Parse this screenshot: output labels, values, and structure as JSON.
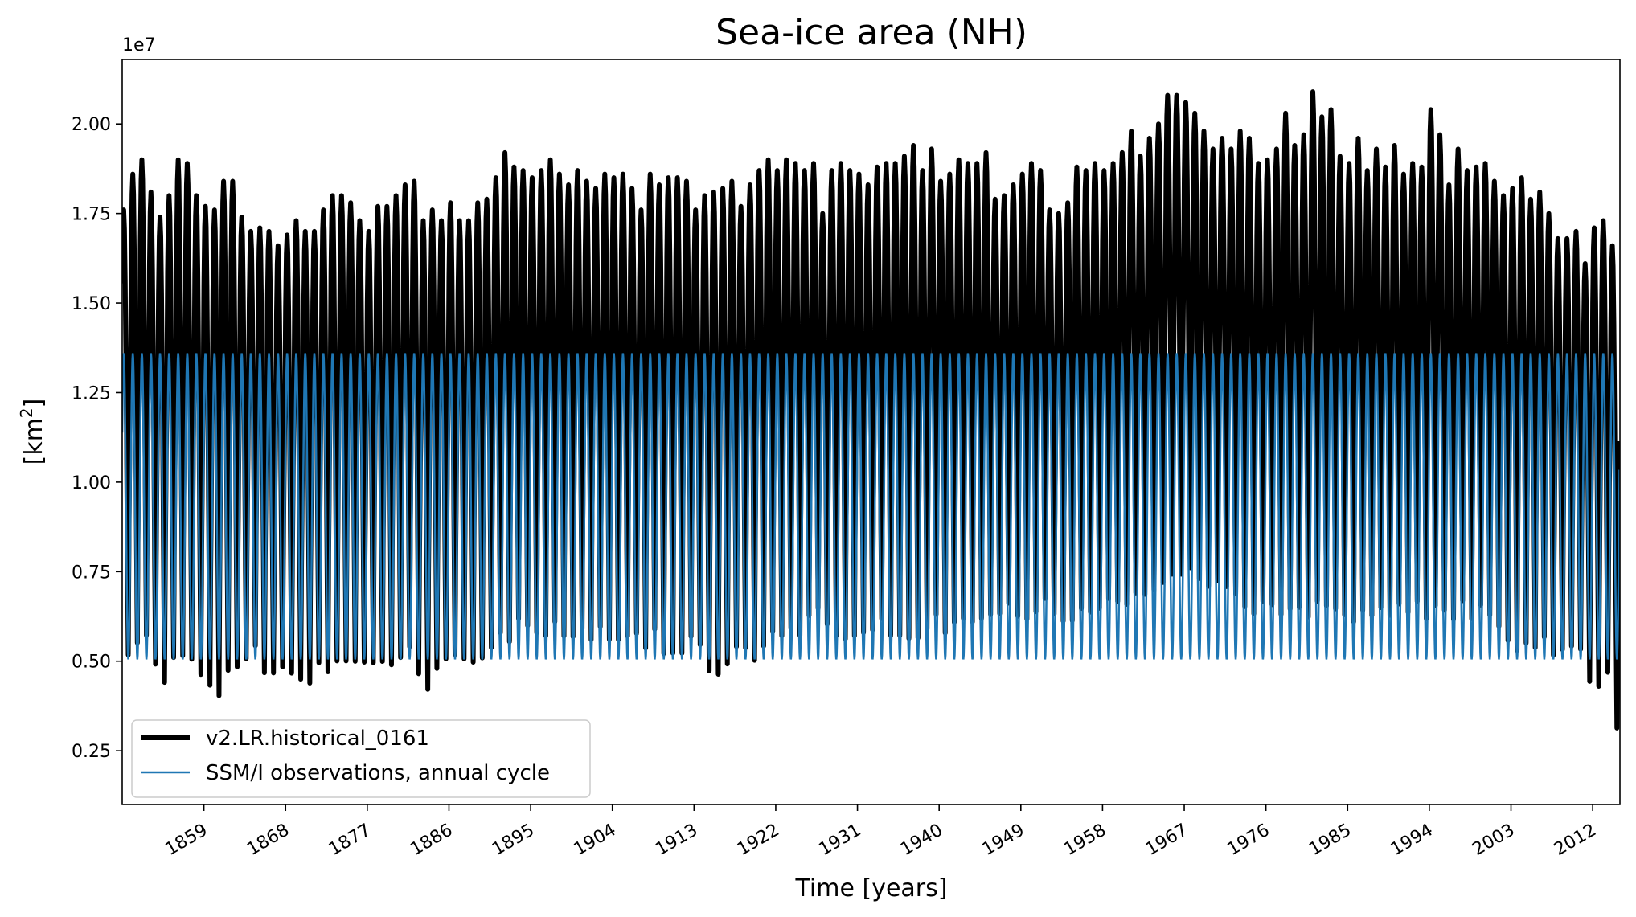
{
  "chart_data": {
    "type": "line",
    "title": "Sea-ice area (NH)",
    "xlabel": "Time [years]",
    "ylabel_main": "[km",
    "ylabel_sup": "2",
    "ylabel_close": "]",
    "y_offset_label": "1e7",
    "xlim": [
      1850,
      2015
    ],
    "ylim": [
      0.1,
      2.18
    ],
    "x_ticks": [
      1859,
      1868,
      1877,
      1886,
      1895,
      1904,
      1913,
      1922,
      1931,
      1940,
      1949,
      1958,
      1967,
      1976,
      1985,
      1994,
      2003,
      2012
    ],
    "x_tick_labels": [
      "1859",
      "1868",
      "1877",
      "1886",
      "1895",
      "1904",
      "1913",
      "1922",
      "1931",
      "1940",
      "1949",
      "1958",
      "1967",
      "1976",
      "1985",
      "1994",
      "2003",
      "2012"
    ],
    "y_ticks": [
      0.25,
      0.5,
      0.75,
      1.0,
      1.25,
      1.5,
      1.75,
      2.0
    ],
    "y_tick_labels": [
      "0.25",
      "0.50",
      "0.75",
      "1.00",
      "1.25",
      "1.50",
      "1.75",
      "2.00"
    ],
    "legend_position": "lower-left",
    "series": [
      {
        "name": "v2.LR.historical_0161",
        "color": "#000000",
        "style": "thick",
        "years": [
          1850,
          1851,
          1852,
          1853,
          1854,
          1855,
          1856,
          1857,
          1858,
          1859,
          1860,
          1861,
          1862,
          1863,
          1864,
          1865,
          1866,
          1867,
          1868,
          1869,
          1870,
          1871,
          1872,
          1873,
          1874,
          1875,
          1876,
          1877,
          1878,
          1879,
          1880,
          1881,
          1882,
          1883,
          1884,
          1885,
          1886,
          1887,
          1888,
          1889,
          1890,
          1891,
          1892,
          1893,
          1894,
          1895,
          1896,
          1897,
          1898,
          1899,
          1900,
          1901,
          1902,
          1903,
          1904,
          1905,
          1906,
          1907,
          1908,
          1909,
          1910,
          1911,
          1912,
          1913,
          1914,
          1915,
          1916,
          1917,
          1918,
          1919,
          1920,
          1921,
          1922,
          1923,
          1924,
          1925,
          1926,
          1927,
          1928,
          1929,
          1930,
          1931,
          1932,
          1933,
          1934,
          1935,
          1936,
          1937,
          1938,
          1939,
          1940,
          1941,
          1942,
          1943,
          1944,
          1945,
          1946,
          1947,
          1948,
          1949,
          1950,
          1951,
          1952,
          1953,
          1954,
          1955,
          1956,
          1957,
          1958,
          1959,
          1960,
          1961,
          1962,
          1963,
          1964,
          1965,
          1966,
          1967,
          1968,
          1969,
          1970,
          1971,
          1972,
          1973,
          1974,
          1975,
          1976,
          1977,
          1978,
          1979,
          1980,
          1981,
          1982,
          1983,
          1984,
          1985,
          1986,
          1987,
          1988,
          1989,
          1990,
          1991,
          1992,
          1993,
          1994,
          1995,
          1996,
          1997,
          1998,
          1999,
          2000,
          2001,
          2002,
          2003,
          2004,
          2005,
          2006,
          2007,
          2008,
          2009,
          2010,
          2011,
          2012,
          2013,
          2014
        ],
        "annual_max": [
          1.76,
          1.86,
          1.9,
          1.81,
          1.74,
          1.8,
          1.9,
          1.89,
          1.8,
          1.77,
          1.76,
          1.84,
          1.84,
          1.74,
          1.7,
          1.71,
          1.7,
          1.66,
          1.69,
          1.73,
          1.7,
          1.7,
          1.76,
          1.8,
          1.8,
          1.78,
          1.73,
          1.7,
          1.77,
          1.77,
          1.8,
          1.83,
          1.84,
          1.73,
          1.76,
          1.73,
          1.78,
          1.73,
          1.73,
          1.78,
          1.79,
          1.85,
          1.92,
          1.88,
          1.87,
          1.85,
          1.87,
          1.9,
          1.86,
          1.83,
          1.87,
          1.84,
          1.82,
          1.86,
          1.85,
          1.86,
          1.82,
          1.76,
          1.86,
          1.83,
          1.85,
          1.85,
          1.84,
          1.76,
          1.8,
          1.81,
          1.82,
          1.84,
          1.77,
          1.83,
          1.87,
          1.9,
          1.87,
          1.9,
          1.89,
          1.87,
          1.89,
          1.75,
          1.87,
          1.89,
          1.87,
          1.86,
          1.83,
          1.88,
          1.89,
          1.89,
          1.91,
          1.94,
          1.87,
          1.93,
          1.84,
          1.86,
          1.9,
          1.89,
          1.89,
          1.92,
          1.79,
          1.8,
          1.83,
          1.86,
          1.89,
          1.87,
          1.76,
          1.75,
          1.78,
          1.88,
          1.87,
          1.89,
          1.87,
          1.89,
          1.92,
          1.98,
          1.91,
          1.96,
          2.0,
          2.08,
          2.08,
          2.06,
          2.03,
          1.98,
          1.93,
          1.96,
          1.93,
          1.98,
          1.96,
          1.89,
          1.9,
          1.93,
          2.03,
          1.94,
          1.97,
          2.09,
          2.02,
          2.04,
          1.91,
          1.89,
          1.96,
          1.87,
          1.93,
          1.88,
          1.94,
          1.86,
          1.89,
          1.88,
          2.04,
          1.97,
          1.83,
          1.93,
          1.87,
          1.88,
          1.89,
          1.84,
          1.8,
          1.82,
          1.85,
          1.79,
          1.81,
          1.75,
          1.68,
          1.68,
          1.7,
          1.61,
          1.71,
          1.73,
          1.66,
          1.7,
          1.63
        ],
        "annual_min": [
          0.45,
          0.48,
          0.5,
          0.42,
          0.37,
          0.44,
          0.44,
          0.43,
          0.39,
          0.36,
          0.33,
          0.4,
          0.41,
          0.44,
          0.48,
          0.4,
          0.4,
          0.42,
          0.4,
          0.38,
          0.37,
          0.43,
          0.4,
          0.43,
          0.43,
          0.43,
          0.43,
          0.43,
          0.43,
          0.42,
          0.44,
          0.47,
          0.39,
          0.35,
          0.41,
          0.44,
          0.45,
          0.44,
          0.43,
          0.44,
          0.47,
          0.51,
          0.48,
          0.55,
          0.53,
          0.51,
          0.5,
          0.54,
          0.5,
          0.5,
          0.52,
          0.49,
          0.53,
          0.49,
          0.49,
          0.5,
          0.51,
          0.47,
          0.52,
          0.45,
          0.45,
          0.45,
          0.5,
          0.48,
          0.4,
          0.39,
          0.42,
          0.47,
          0.47,
          0.43,
          0.47,
          0.51,
          0.5,
          0.52,
          0.5,
          0.56,
          0.58,
          0.54,
          0.5,
          0.49,
          0.5,
          0.51,
          0.52,
          0.55,
          0.5,
          0.5,
          0.49,
          0.49,
          0.52,
          0.56,
          0.51,
          0.54,
          0.55,
          0.54,
          0.55,
          0.56,
          0.57,
          0.6,
          0.56,
          0.55,
          0.57,
          0.61,
          0.57,
          0.55,
          0.55,
          0.58,
          0.57,
          0.58,
          0.61,
          0.6,
          0.59,
          0.62,
          0.62,
          0.63,
          0.65,
          0.67,
          0.67,
          0.69,
          0.66,
          0.64,
          0.66,
          0.64,
          0.62,
          0.58,
          0.56,
          0.6,
          0.59,
          0.56,
          0.57,
          0.58,
          0.55,
          0.59,
          0.58,
          0.57,
          0.56,
          0.54,
          0.57,
          0.56,
          0.58,
          0.56,
          0.59,
          0.57,
          0.6,
          0.55,
          0.58,
          0.57,
          0.55,
          0.6,
          0.55,
          0.59,
          0.56,
          0.53,
          0.49,
          0.46,
          0.48,
          0.47,
          0.5,
          0.45,
          0.47,
          0.48,
          0.47,
          0.38,
          0.36,
          0.4,
          0.24,
          0.2,
          0.27,
          0.35,
          0.43
        ]
      },
      {
        "name": "SSM/I observations, annual cycle",
        "color": "#1f77b4",
        "style": "thin",
        "cycle_max": 1.36,
        "cycle_min": 0.505
      }
    ]
  }
}
